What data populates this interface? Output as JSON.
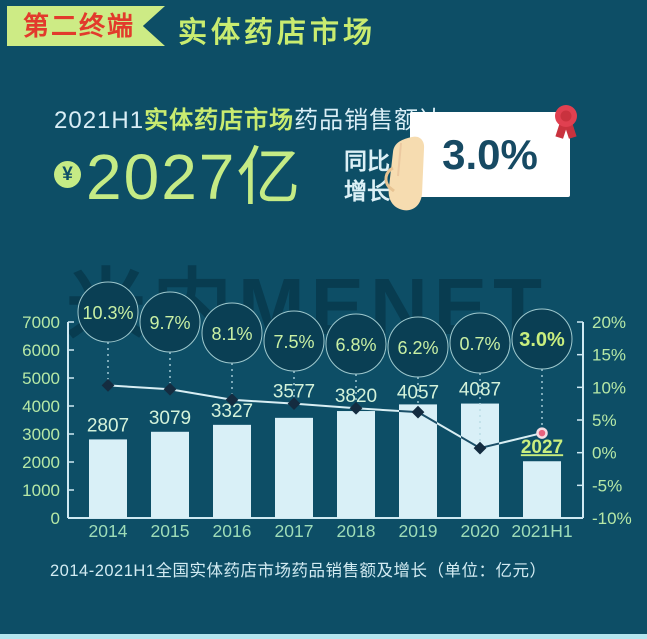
{
  "header": {
    "badge": "第二终端",
    "title": "实体药店市场"
  },
  "hero": {
    "line1_prefix": "2021H1",
    "line1_highlight": "实体药店市场",
    "line1_suffix": "药品销售额达",
    "currency_symbol": "¥",
    "amount": "2027亿",
    "yoy_line1": "同比",
    "yoy_line2": "增长",
    "growth_value": "3.0%"
  },
  "watermark": {
    "text": "米内MENET"
  },
  "caption": "2014-2021H1全国实体药店市场药品销售额及增长（单位：亿元）",
  "chart_data": {
    "type": "bar",
    "title": "2014-2021H1全国实体药店市场药品销售额及增长（单位：亿元）",
    "categories": [
      "2014",
      "2015",
      "2016",
      "2017",
      "2018",
      "2019",
      "2020",
      "2021H1"
    ],
    "series": [
      {
        "name": "药品销售额(亿元)",
        "type": "bar",
        "values": [
          2807,
          3079,
          3327,
          3577,
          3820,
          4057,
          4087,
          2027
        ],
        "labels": [
          "2807",
          "3079",
          "3327",
          "3577",
          "3820",
          "4057",
          "4087",
          "2027"
        ]
      },
      {
        "name": "同比增长(%)",
        "type": "line",
        "values": [
          10.3,
          9.7,
          8.1,
          7.5,
          6.8,
          6.2,
          0.7,
          3.0
        ],
        "labels": [
          "10.3%",
          "9.7%",
          "8.1%",
          "7.5%",
          "6.8%",
          "6.2%",
          "0.7%",
          "3.0%"
        ]
      }
    ],
    "left_axis": {
      "min": 0,
      "max": 7000,
      "tick_values": [
        7000,
        6000,
        5000,
        4000,
        3000,
        2000,
        1000,
        0
      ],
      "tick_labels": [
        "7000",
        "6000",
        "5000",
        "4000",
        "3000",
        "2000",
        "1000",
        "0"
      ]
    },
    "right_axis": {
      "min": -10,
      "max": 20,
      "tick_values": [
        20,
        15,
        10,
        5,
        0,
        -5,
        -10
      ],
      "tick_labels": [
        "20%",
        "15%",
        "10%",
        "5%",
        "0%",
        "-5%",
        "-10%"
      ]
    },
    "legend_position": "none",
    "grid": false
  },
  "colors": {
    "background": "#0d4e66",
    "badge_bg": "#cdeb85",
    "badge_text": "#e23a2c",
    "highlight_green": "#c9ec70",
    "axis": "#cfe9f2",
    "axis_label": "#b6e8a6",
    "xlabel": "#9edcb8",
    "bar": "#d9f0f7",
    "bar_label": "#d3f2da",
    "highlight_label": "#c9ee7e",
    "line": "#d8eef3",
    "line_over_bar": "#1b4f68",
    "marker": "#142c40",
    "marker_last": "#e8627e",
    "marker_last_ring": "#f6dde3",
    "dash": "#b7dbe4",
    "bubble": "#0a3f54",
    "bubble_border": "#9fc9ce",
    "bubble_label": "#c9f0a4",
    "box_bg": "#ffffff",
    "box_text": "#174a63",
    "rosette_red": "#e04050",
    "hand_skin": "#f6dcb0"
  }
}
